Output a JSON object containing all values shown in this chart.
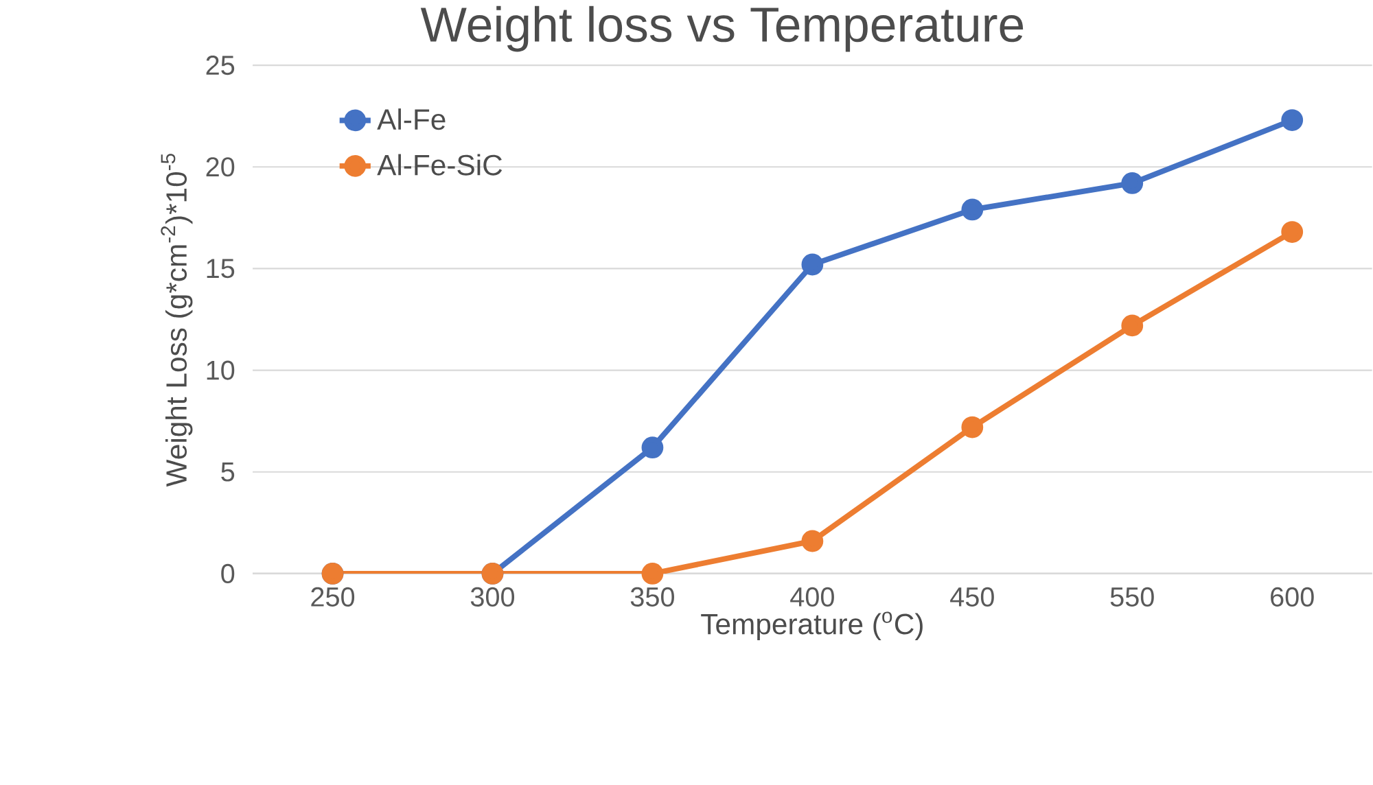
{
  "chart_data": {
    "type": "line",
    "title": "Weight loss vs Temperature",
    "xlabel": "Temperature ($^{o}$C)",
    "ylabel": "Weight Loss (g*cm$^{-2}$)*10$^{-5}$",
    "categories": [
      "250",
      "300",
      "350",
      "400",
      "450",
      "550",
      "600"
    ],
    "series": [
      {
        "name": "Al-Fe",
        "color": "#4472c4",
        "values": [
          0,
          0,
          6.2,
          15.2,
          17.9,
          19.2,
          22.3
        ]
      },
      {
        "name": "Al-Fe-SiC",
        "color": "#ed7d31",
        "values": [
          0,
          0,
          0,
          1.6,
          7.2,
          12.2,
          16.8
        ]
      }
    ],
    "ylim": [
      0,
      25
    ],
    "yticks": [
      0,
      5,
      10,
      15,
      20,
      25
    ],
    "grid": "y",
    "legend": "top left",
    "marker": "circle",
    "line_style": "solid"
  }
}
